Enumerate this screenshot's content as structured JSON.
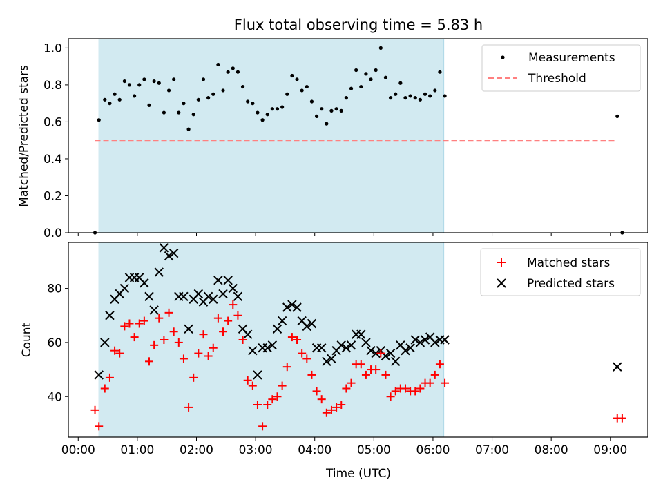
{
  "chart_data": [
    {
      "type": "scatter",
      "title": "Flux total observing time = 5.83 h",
      "xlabel": "",
      "ylabel": "Matched/Predicted stars",
      "ylim": [
        0.0,
        1.05
      ],
      "xlim": [
        "-00:10",
        "09:38"
      ],
      "yticks": [
        "0.0",
        "0.2",
        "0.4",
        "0.6",
        "0.8",
        "1.0"
      ],
      "yticks_values": [
        0.0,
        0.2,
        0.4,
        0.6,
        0.8,
        1.0
      ],
      "observing_window": [
        "00:21",
        "06:11"
      ],
      "window_color": "#add8e6",
      "legend_position": "top-right",
      "series": [
        {
          "name": "Measurements",
          "marker": "dot",
          "color": "#000000",
          "x": [
            "00:17",
            "00:21",
            "00:27",
            "00:32",
            "00:37",
            "00:42",
            "00:47",
            "00:52",
            "00:57",
            "01:02",
            "01:07",
            "01:12",
            "01:17",
            "01:22",
            "01:27",
            "01:32",
            "01:37",
            "01:42",
            "01:47",
            "01:52",
            "01:57",
            "02:02",
            "02:07",
            "02:12",
            "02:17",
            "02:22",
            "02:27",
            "02:32",
            "02:37",
            "02:42",
            "02:47",
            "02:52",
            "02:57",
            "03:02",
            "03:07",
            "03:12",
            "03:17",
            "03:22",
            "03:27",
            "03:32",
            "03:37",
            "03:42",
            "03:47",
            "03:52",
            "03:57",
            "04:02",
            "04:07",
            "04:12",
            "04:17",
            "04:22",
            "04:27",
            "04:32",
            "04:37",
            "04:42",
            "04:47",
            "04:52",
            "04:57",
            "05:02",
            "05:07",
            "05:12",
            "05:17",
            "05:22",
            "05:27",
            "05:32",
            "05:37",
            "05:42",
            "05:47",
            "05:52",
            "05:57",
            "06:02",
            "06:07",
            "06:12",
            "09:07",
            "09:12"
          ],
          "y": [
            0.0,
            0.61,
            0.72,
            0.7,
            0.75,
            0.72,
            0.82,
            0.8,
            0.74,
            0.8,
            0.83,
            0.69,
            0.82,
            0.81,
            0.65,
            0.77,
            0.83,
            0.65,
            0.7,
            0.56,
            0.64,
            0.72,
            0.83,
            0.73,
            0.75,
            0.91,
            0.77,
            0.87,
            0.89,
            0.87,
            0.79,
            0.71,
            0.7,
            0.65,
            0.61,
            0.64,
            0.67,
            0.67,
            0.68,
            0.75,
            0.85,
            0.83,
            0.77,
            0.79,
            0.71,
            0.63,
            0.67,
            0.59,
            0.66,
            0.67,
            0.66,
            0.73,
            0.78,
            0.88,
            0.79,
            0.86,
            0.83,
            0.88,
            1.0,
            0.84,
            0.73,
            0.75,
            0.81,
            0.73,
            0.74,
            0.73,
            0.72,
            0.75,
            0.74,
            0.77,
            0.87,
            0.74,
            0.63,
            0.0
          ]
        },
        {
          "name": "Threshold",
          "marker": "dashed-line",
          "color": "#ff8080",
          "x": [
            "00:17",
            "09:07"
          ],
          "y": [
            0.5,
            0.5
          ]
        }
      ]
    },
    {
      "type": "scatter",
      "title": "",
      "xlabel": "Time (UTC)",
      "ylabel": "Count",
      "ylim": [
        25,
        97
      ],
      "xlim": [
        "-00:10",
        "09:38"
      ],
      "yticks": [
        "40",
        "60",
        "80"
      ],
      "yticks_values": [
        40,
        60,
        80
      ],
      "xticks": [
        "00:00",
        "01:00",
        "02:00",
        "03:00",
        "04:00",
        "05:00",
        "06:00",
        "07:00",
        "08:00",
        "09:00"
      ],
      "xticks_values": [
        "00:00",
        "01:00",
        "02:00",
        "03:00",
        "04:00",
        "05:00",
        "06:00",
        "07:00",
        "08:00",
        "09:00"
      ],
      "observing_window": [
        "00:21",
        "06:11"
      ],
      "window_color": "#add8e6",
      "legend_position": "top-right",
      "series": [
        {
          "name": "Matched stars",
          "marker": "plus",
          "color": "#ff0000",
          "x": [
            "00:17",
            "00:21",
            "00:27",
            "00:32",
            "00:37",
            "00:42",
            "00:47",
            "00:52",
            "00:57",
            "01:02",
            "01:07",
            "01:12",
            "01:17",
            "01:22",
            "01:27",
            "01:32",
            "01:37",
            "01:42",
            "01:47",
            "01:52",
            "01:57",
            "02:02",
            "02:07",
            "02:12",
            "02:17",
            "02:22",
            "02:27",
            "02:32",
            "02:37",
            "02:42",
            "02:47",
            "02:52",
            "02:57",
            "03:02",
            "03:07",
            "03:12",
            "03:17",
            "03:22",
            "03:27",
            "03:32",
            "03:37",
            "03:42",
            "03:47",
            "03:52",
            "03:57",
            "04:02",
            "04:07",
            "04:12",
            "04:17",
            "04:22",
            "04:27",
            "04:32",
            "04:37",
            "04:42",
            "04:47",
            "04:52",
            "04:57",
            "05:02",
            "05:07",
            "05:12",
            "05:17",
            "05:22",
            "05:27",
            "05:32",
            "05:37",
            "05:42",
            "05:47",
            "05:52",
            "05:57",
            "06:02",
            "06:07",
            "06:12",
            "09:07",
            "09:12"
          ],
          "y": [
            35,
            29,
            43,
            47,
            57,
            56,
            66,
            67,
            62,
            67,
            68,
            53,
            59,
            69,
            61,
            71,
            64,
            60,
            54,
            36,
            47,
            56,
            63,
            55,
            58,
            69,
            64,
            68,
            74,
            70,
            61,
            46,
            44,
            37,
            29,
            37,
            39,
            40,
            44,
            51,
            62,
            61,
            56,
            54,
            48,
            42,
            39,
            34,
            35,
            36,
            37,
            43,
            45,
            52,
            52,
            48,
            50,
            50,
            56,
            48,
            40,
            42,
            43,
            43,
            42,
            42,
            43,
            45,
            45,
            48,
            52,
            45,
            32,
            32
          ]
        },
        {
          "name": "Predicted stars",
          "marker": "x",
          "color": "#000000",
          "x": [
            "00:21",
            "00:27",
            "00:32",
            "00:37",
            "00:42",
            "00:47",
            "00:52",
            "00:57",
            "01:02",
            "01:07",
            "01:12",
            "01:17",
            "01:22",
            "01:27",
            "01:32",
            "01:37",
            "01:42",
            "01:47",
            "01:52",
            "01:57",
            "02:02",
            "02:07",
            "02:12",
            "02:17",
            "02:22",
            "02:27",
            "02:32",
            "02:37",
            "02:42",
            "02:47",
            "02:52",
            "02:57",
            "03:02",
            "03:07",
            "03:12",
            "03:17",
            "03:22",
            "03:27",
            "03:32",
            "03:37",
            "03:42",
            "03:47",
            "03:52",
            "03:57",
            "04:02",
            "04:07",
            "04:12",
            "04:17",
            "04:22",
            "04:27",
            "04:32",
            "04:37",
            "04:42",
            "04:47",
            "04:52",
            "04:57",
            "05:02",
            "05:07",
            "05:12",
            "05:17",
            "05:22",
            "05:27",
            "05:32",
            "05:37",
            "05:42",
            "05:47",
            "05:52",
            "05:57",
            "06:02",
            "06:07",
            "06:12",
            "09:07"
          ],
          "y": [
            48,
            60,
            70,
            76,
            78,
            80,
            84,
            84,
            84,
            82,
            77,
            72,
            86,
            95,
            92,
            93,
            77,
            77,
            65,
            76,
            78,
            75,
            77,
            76,
            83,
            78,
            83,
            80,
            77,
            65,
            63,
            57,
            48,
            58,
            58,
            59,
            65,
            68,
            73,
            74,
            73,
            68,
            66,
            67,
            58,
            58,
            53,
            54,
            57,
            59,
            58,
            59,
            63,
            63,
            60,
            57,
            56,
            57,
            55,
            56,
            53,
            59,
            57,
            58,
            61,
            60,
            61,
            62,
            60,
            61,
            61,
            51
          ]
        }
      ]
    }
  ]
}
